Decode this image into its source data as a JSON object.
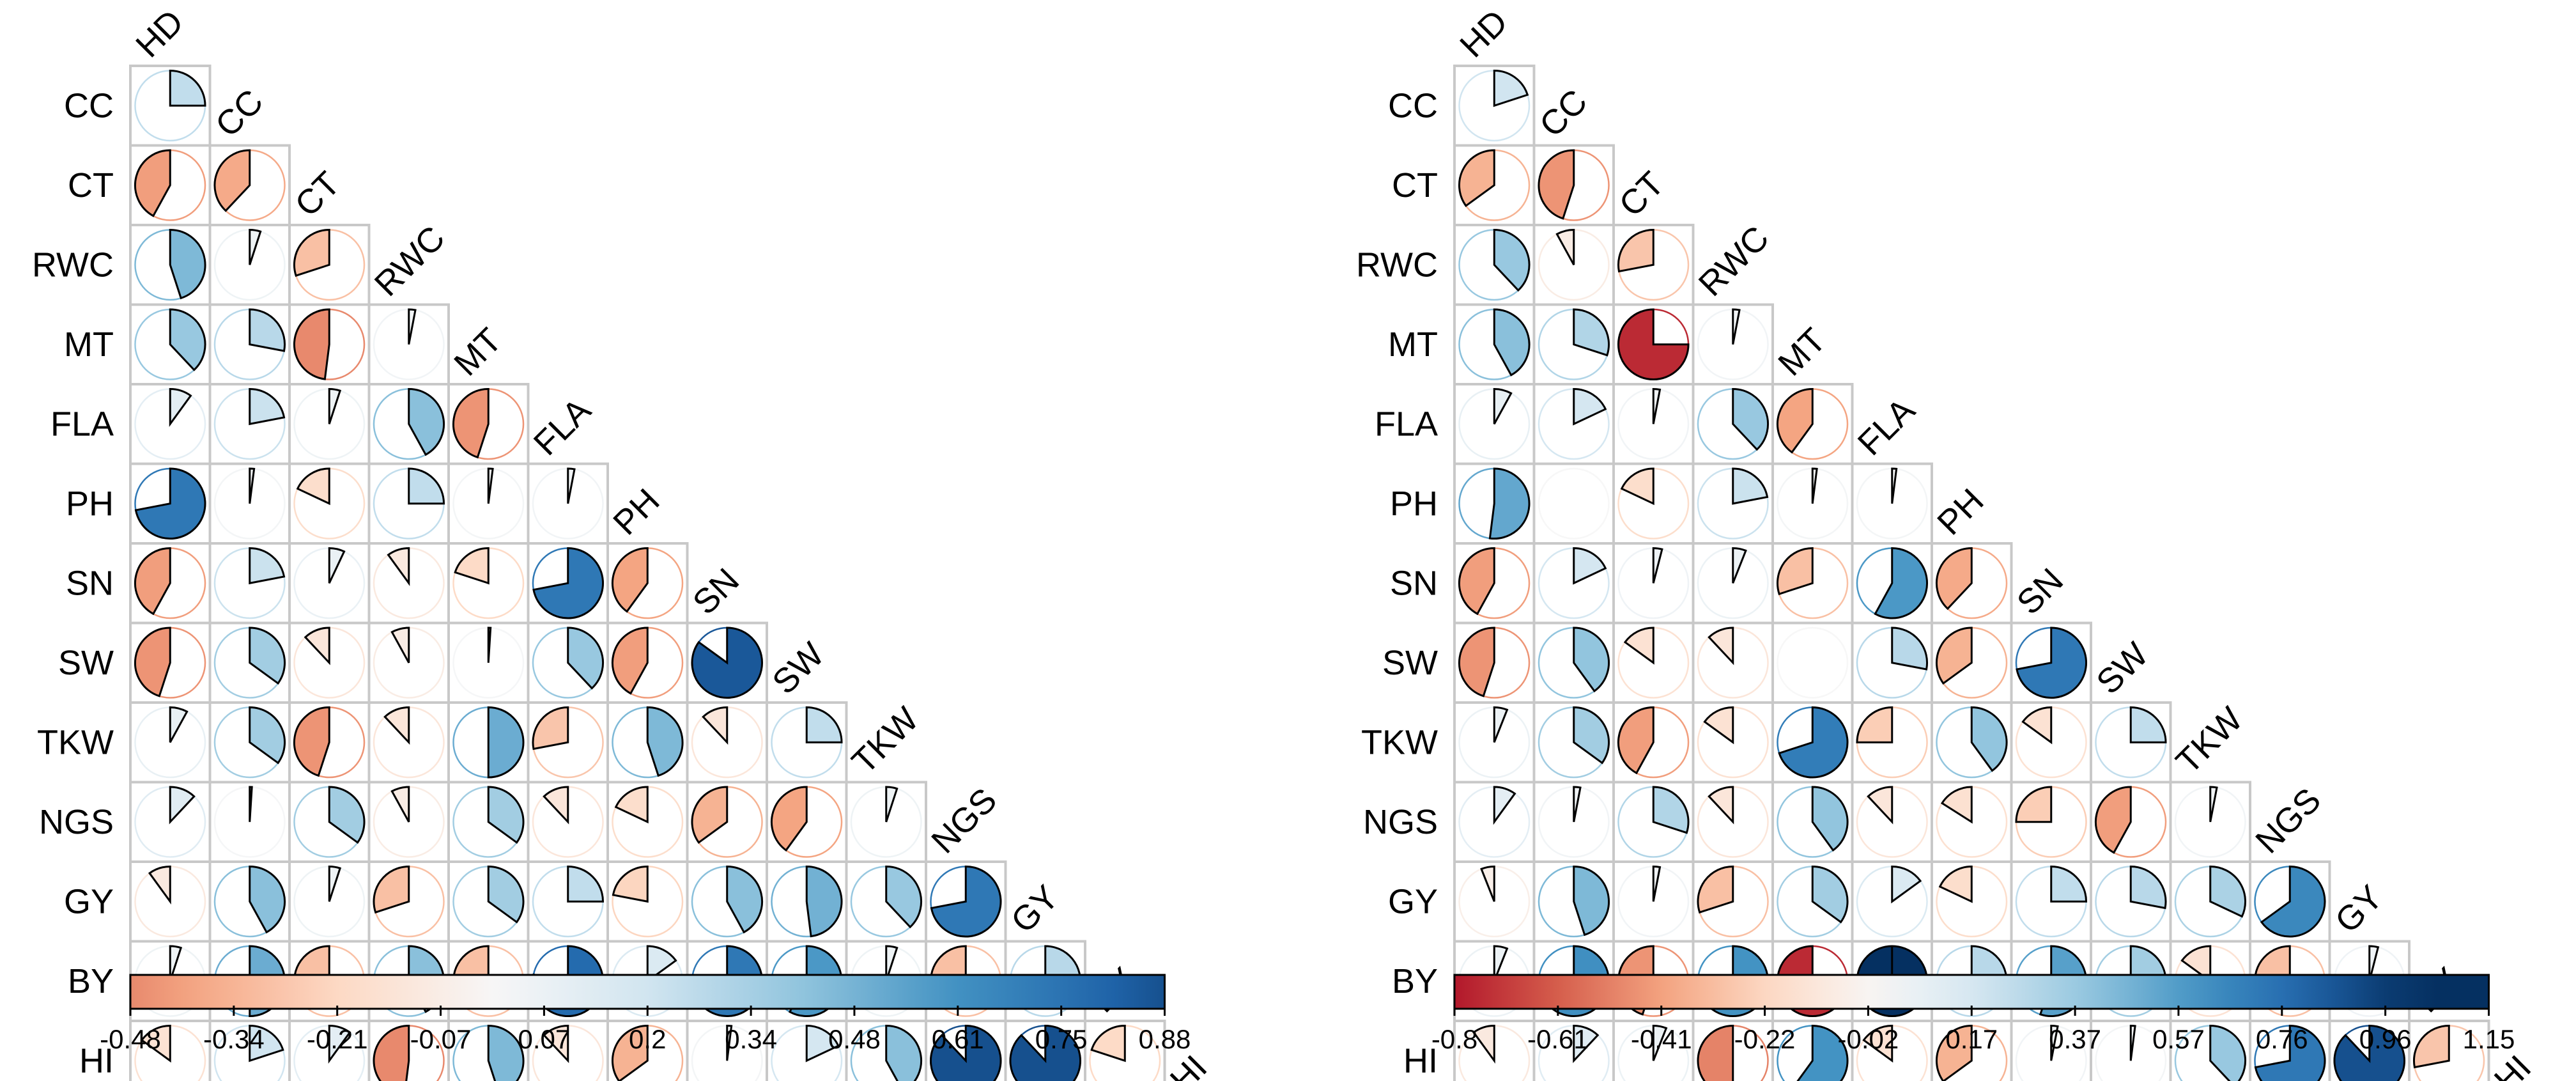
{
  "chart_data": [
    {
      "type": "heatmap",
      "title": "",
      "variables": [
        "HD",
        "CC",
        "CT",
        "RWC",
        "MT",
        "FLA",
        "PH",
        "SN",
        "SW",
        "TKW",
        "NGS",
        "GY",
        "BY",
        "HI"
      ],
      "matrix_shape": "lower-triangular pie correlogram",
      "color_scale": {
        "min": -0.48,
        "max": 0.88,
        "tick_labels": [
          "-0.48",
          "-0.34",
          "-0.21",
          "-0.07",
          "0.07",
          "0.2",
          "0.34",
          "0.48",
          "0.61",
          "0.75",
          "0.88"
        ]
      },
      "rows": [
        {
          "name": "CC",
          "values": [
            0.25
          ]
        },
        {
          "name": "CT",
          "values": [
            -0.42,
            -0.38
          ]
        },
        {
          "name": "RWC",
          "values": [
            0.45,
            0.05,
            -0.3
          ]
        },
        {
          "name": "MT",
          "values": [
            0.38,
            0.28,
            -0.48,
            0.03
          ]
        },
        {
          "name": "FLA",
          "values": [
            0.1,
            0.22,
            0.05,
            0.42,
            -0.45
          ]
        },
        {
          "name": "PH",
          "values": [
            0.72,
            0.02,
            -0.18,
            0.25,
            0.02,
            0.03
          ]
        },
        {
          "name": "SN",
          "values": [
            -0.42,
            0.22,
            0.07,
            -0.1,
            -0.2,
            0.72,
            -0.4
          ]
        },
        {
          "name": "SW",
          "values": [
            -0.45,
            0.35,
            -0.12,
            -0.08,
            0.01,
            0.38,
            -0.42,
            0.85
          ]
        },
        {
          "name": "TKW",
          "values": [
            0.08,
            0.35,
            -0.45,
            -0.12,
            0.5,
            -0.28,
            0.45,
            -0.12,
            0.25
          ]
        },
        {
          "name": "NGS",
          "values": [
            0.12,
            0.01,
            0.35,
            -0.08,
            0.35,
            -0.12,
            -0.18,
            -0.35,
            -0.4,
            0.05
          ]
        },
        {
          "name": "GY",
          "values": [
            -0.1,
            0.42,
            0.05,
            -0.3,
            0.35,
            0.25,
            -0.22,
            0.42,
            0.48,
            0.38,
            0.72
          ]
        },
        {
          "name": "BY",
          "values": [
            0.05,
            0.5,
            -0.3,
            0.42,
            -0.3,
            0.78,
            0.15,
            0.72,
            0.58,
            0.05,
            -0.3,
            0.28
          ]
        },
        {
          "name": "HI",
          "values": [
            -0.15,
            0.2,
            0.1,
            -0.48,
            0.45,
            -0.12,
            -0.35,
            0.02,
            0.18,
            0.42,
            0.88,
            0.88,
            -0.2
          ]
        }
      ]
    },
    {
      "type": "heatmap",
      "title": "",
      "variables": [
        "HD",
        "CC",
        "CT",
        "RWC",
        "MT",
        "FLA",
        "PH",
        "SN",
        "SW",
        "TKW",
        "NGS",
        "GY",
        "BY",
        "HI"
      ],
      "matrix_shape": "lower-triangular pie correlogram",
      "color_scale": {
        "min": -0.8,
        "max": 1.15,
        "tick_labels": [
          "-0.8",
          "-0.61",
          "-0.41",
          "-0.22",
          "-0.02",
          "0.17",
          "0.37",
          "0.57",
          "0.76",
          "0.96",
          "1.15"
        ]
      },
      "rows": [
        {
          "name": "CC",
          "values": [
            0.2
          ]
        },
        {
          "name": "CT",
          "values": [
            -0.35,
            -0.45
          ]
        },
        {
          "name": "RWC",
          "values": [
            0.38,
            -0.08,
            -0.28
          ]
        },
        {
          "name": "MT",
          "values": [
            0.42,
            0.3,
            -0.75,
            0.03
          ]
        },
        {
          "name": "FLA",
          "values": [
            0.08,
            0.18,
            0.03,
            0.38,
            -0.4
          ]
        },
        {
          "name": "PH",
          "values": [
            0.52,
            0.0,
            -0.18,
            0.22,
            0.02,
            0.02
          ]
        },
        {
          "name": "SN",
          "values": [
            -0.42,
            0.18,
            0.04,
            0.06,
            -0.3,
            0.58,
            -0.38
          ]
        },
        {
          "name": "SW",
          "values": [
            -0.45,
            0.4,
            -0.15,
            -0.12,
            0.0,
            0.28,
            -0.35,
            0.72
          ]
        },
        {
          "name": "TKW",
          "values": [
            0.06,
            0.35,
            -0.42,
            -0.15,
            0.7,
            -0.25,
            0.4,
            -0.15,
            0.25
          ]
        },
        {
          "name": "NGS",
          "values": [
            0.1,
            0.03,
            0.3,
            -0.12,
            0.4,
            -0.12,
            -0.16,
            -0.25,
            -0.42,
            0.03
          ]
        },
        {
          "name": "GY",
          "values": [
            -0.06,
            0.45,
            0.03,
            -0.3,
            0.35,
            0.15,
            -0.18,
            0.25,
            0.28,
            0.32,
            0.65
          ]
        },
        {
          "name": "BY",
          "values": [
            0.06,
            0.62,
            -0.45,
            0.6,
            -0.75,
            1.15,
            0.28,
            0.55,
            0.35,
            -0.15,
            -0.3,
            0.04
          ]
        },
        {
          "name": "HI",
          "values": [
            -0.1,
            0.12,
            0.06,
            -0.5,
            0.6,
            -0.15,
            -0.35,
            0.03,
            0.02,
            0.38,
            0.72,
            0.88,
            -0.28
          ]
        }
      ]
    }
  ]
}
